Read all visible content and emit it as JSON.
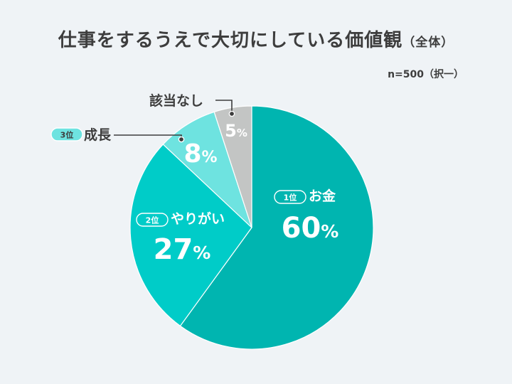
{
  "title": "仕事をするうえで大切にしている価値観",
  "title_suffix": "（全体）",
  "note": "n=500（択一）",
  "chart_data": {
    "type": "pie",
    "title": "仕事をするうえで大切にしている価値観（全体）",
    "categories": [
      "お金",
      "やりがい",
      "成長",
      "該当なし"
    ],
    "values": [
      60,
      27,
      8,
      5
    ],
    "unit": "%",
    "ranks": [
      "1位",
      "2位",
      "3位",
      ""
    ],
    "colors": [
      "#00b5b0",
      "#00ccc8",
      "#6ee3e0",
      "#c3c5c4"
    ],
    "start_angle": 0,
    "direction": "clockwise"
  }
}
